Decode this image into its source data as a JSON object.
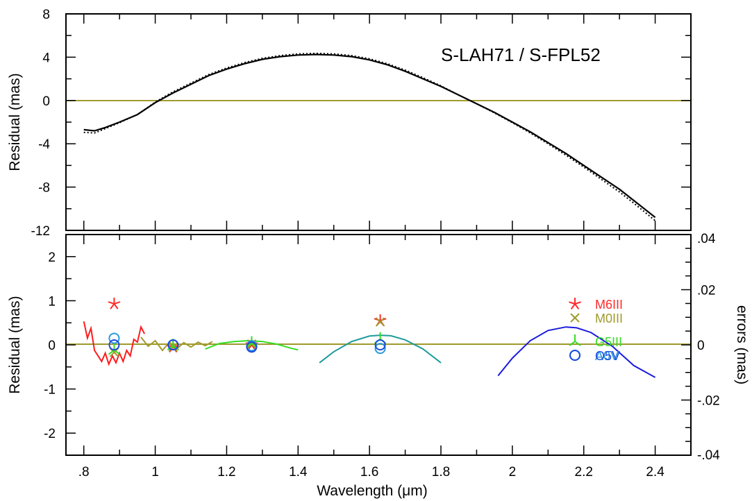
{
  "chart_data": [
    {
      "type": "line",
      "ylabel": "Residual (mas)",
      "annotation": "S-LAH71 / S-FPL52",
      "xlim": [
        0.75,
        2.5
      ],
      "ylim": [
        -12,
        8
      ],
      "xticks": [
        0.8,
        1.0,
        1.2,
        1.4,
        1.6,
        1.8,
        2.0,
        2.2,
        2.4
      ],
      "yticks": [
        8,
        4,
        0,
        -4,
        -8,
        -12
      ],
      "ytick_labels": [
        "8",
        "4",
        "0",
        "-4",
        "-8",
        "-12"
      ],
      "zero_line_color": "#a09a2c",
      "series": [
        {
          "style": "solid",
          "color": "#000000",
          "x": [
            0.8,
            0.83,
            0.86,
            0.9,
            0.95,
            1.0,
            1.05,
            1.1,
            1.15,
            1.2,
            1.25,
            1.3,
            1.35,
            1.4,
            1.45,
            1.5,
            1.55,
            1.6,
            1.65,
            1.7,
            1.75,
            1.8,
            1.85,
            1.9,
            1.95,
            2.0,
            2.05,
            2.1,
            2.15,
            2.2,
            2.25,
            2.3,
            2.35,
            2.4
          ],
          "y": [
            -2.7,
            -2.8,
            -2.5,
            -2.0,
            -1.3,
            -0.2,
            0.7,
            1.5,
            2.3,
            2.9,
            3.4,
            3.8,
            4.05,
            4.2,
            4.25,
            4.2,
            4.05,
            3.75,
            3.3,
            2.7,
            2.0,
            1.3,
            0.5,
            -0.3,
            -1.1,
            -2.0,
            -2.9,
            -3.9,
            -4.9,
            -6.0,
            -7.1,
            -8.2,
            -9.5,
            -10.8
          ]
        },
        {
          "style": "dotted",
          "color": "#000000",
          "x": [
            0.8,
            0.83,
            0.86,
            0.9,
            0.95,
            1.0,
            1.05,
            1.1,
            1.15,
            1.2,
            1.25,
            1.3,
            1.35,
            1.4,
            1.45,
            1.5,
            1.55,
            1.6,
            1.65,
            1.7,
            1.75,
            1.8,
            1.85,
            1.9,
            1.95,
            2.0,
            2.05,
            2.1,
            2.15,
            2.2,
            2.25,
            2.3,
            2.35,
            2.4
          ],
          "y": [
            -2.95,
            -3.0,
            -2.6,
            -2.05,
            -1.3,
            -0.15,
            0.8,
            1.6,
            2.4,
            3.0,
            3.5,
            3.9,
            4.15,
            4.3,
            4.35,
            4.3,
            4.15,
            3.85,
            3.4,
            2.8,
            2.1,
            1.35,
            0.5,
            -0.3,
            -1.15,
            -2.05,
            -3.0,
            -4.0,
            -5.05,
            -6.15,
            -7.3,
            -8.45,
            -9.75,
            -11.1
          ]
        }
      ]
    },
    {
      "type": "line",
      "xlabel": "Wavelength (μm)",
      "ylabel": "Residual (mas)",
      "y2label": "errors (mas)",
      "xlim": [
        0.75,
        2.5
      ],
      "ylim": [
        -2.5,
        2.5
      ],
      "y2lim": [
        -0.04,
        0.04
      ],
      "xticks": [
        0.8,
        1.0,
        1.2,
        1.4,
        1.6,
        1.8,
        2.0,
        2.2,
        2.4
      ],
      "xtick_labels": [
        ".8",
        "1",
        "1.2",
        "1.4",
        "1.6",
        "1.8",
        "2",
        "2.2",
        "2.4"
      ],
      "yticks": [
        2,
        1,
        0,
        -1,
        -2
      ],
      "ytick_labels": [
        "2",
        "1",
        "0",
        "-1",
        "-2"
      ],
      "y2ticks": [
        0.04,
        0.02,
        0,
        -0.02,
        -0.04
      ],
      "y2tick_labels": [
        ".04",
        ".02",
        "0",
        "-.02",
        "-.04"
      ],
      "zero_line_color": "#a09a2c",
      "error_curves": [
        {
          "color": "#ff1a1a",
          "x": [
            0.8,
            0.81,
            0.82,
            0.83,
            0.84,
            0.85,
            0.86,
            0.87,
            0.88,
            0.89,
            0.9,
            0.91,
            0.92,
            0.93,
            0.94,
            0.95,
            0.96,
            0.97
          ],
          "y": [
            0.0085,
            0.0025,
            0.006,
            -0.002,
            -0.004,
            -0.006,
            -0.003,
            -0.007,
            -0.004,
            -0.0065,
            -0.003,
            -0.006,
            -0.002,
            -0.004,
            0.002,
            0.001,
            0.0065,
            0.004
          ]
        },
        {
          "color": "#a09a2c",
          "x": [
            0.96,
            0.98,
            1.0,
            1.02,
            1.04,
            1.06,
            1.08,
            1.1,
            1.12,
            1.14,
            1.16
          ],
          "y": [
            0.0028,
            -0.0005,
            0.0015,
            -0.002,
            0.001,
            -0.0015,
            0.0008,
            -0.0008,
            0.001,
            -0.0003,
            0.0012
          ]
        },
        {
          "color": "#33dd22",
          "x": [
            1.14,
            1.18,
            1.22,
            1.26,
            1.3,
            1.34,
            1.38,
            1.4
          ],
          "y": [
            -0.0015,
            0.0005,
            0.0012,
            0.0015,
            0.0012,
            0.0003,
            -0.0012,
            -0.0018
          ]
        },
        {
          "color": "#1e9a9a",
          "x": [
            1.46,
            1.5,
            1.55,
            1.6,
            1.63,
            1.66,
            1.7,
            1.75,
            1.8
          ],
          "y": [
            -0.0065,
            -0.0025,
            0.0012,
            0.0032,
            0.0035,
            0.0033,
            0.0018,
            -0.0015,
            -0.0065
          ]
        },
        {
          "color": "#1a1add",
          "x": [
            1.96,
            2.0,
            2.05,
            2.1,
            2.15,
            2.18,
            2.22,
            2.28,
            2.34,
            2.4
          ],
          "y": [
            -0.0112,
            -0.0048,
            0.0015,
            0.0052,
            0.0065,
            0.0062,
            0.0045,
            -0.0005,
            -0.0075,
            -0.0118
          ]
        }
      ],
      "point_series": [
        {
          "name": "M6III",
          "marker": "star",
          "color": "#ff2a2a",
          "x": [
            0.885,
            1.05,
            1.27,
            1.63
          ],
          "y": [
            0.93,
            -0.05,
            0.0,
            0.55
          ]
        },
        {
          "name": "M0III",
          "marker": "x",
          "color": "#a09a2c",
          "x": [
            0.885,
            1.05,
            1.27,
            1.63
          ],
          "y": [
            -0.17,
            -0.05,
            0.02,
            0.52
          ]
        },
        {
          "name": "G5III",
          "marker": "tri",
          "color": "#33dd22",
          "x": [
            0.885,
            1.05,
            1.27,
            1.63
          ],
          "y": [
            -0.12,
            -0.02,
            0.04,
            0.13
          ]
        },
        {
          "name": "A0V",
          "marker": "circle",
          "color": "#2a9adb",
          "x": [
            0.885,
            1.05,
            1.27,
            1.63
          ],
          "y": [
            0.15,
            0.0,
            -0.02,
            -0.08
          ]
        },
        {
          "name": "O5V",
          "marker": "circle",
          "color": "#1a4adf",
          "x": [
            0.885,
            1.05,
            1.27,
            1.63
          ],
          "y": [
            0.0,
            0.0,
            -0.05,
            0.0
          ]
        }
      ]
    }
  ]
}
